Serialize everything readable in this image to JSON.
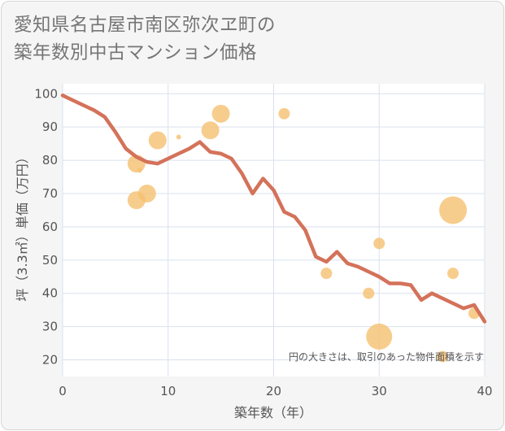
{
  "title_line1": "愛知県名古屋市南区弥次ヱ町の",
  "title_line2": "築年数別中古マンション価格",
  "colors": {
    "line": "#d4725a",
    "bubble": "#f5c070",
    "plot_bg": "#ffffff",
    "grid": "#d9e2ee"
  },
  "chart_data": {
    "type": "scatter",
    "xlabel": "築年数（年）",
    "ylabel": "坪（3.3㎡）単価（万円）",
    "xlim": [
      0,
      40
    ],
    "ylim": [
      15,
      103
    ],
    "xticks": [
      0,
      10,
      20,
      30,
      40
    ],
    "yticks": [
      20,
      30,
      40,
      50,
      60,
      70,
      80,
      90,
      100
    ],
    "grid": true,
    "note": "円の大きさは、取引のあった物件面積を示す",
    "line": {
      "x": [
        0,
        1,
        2,
        3,
        4,
        5,
        6,
        7,
        8,
        9,
        10,
        11,
        12,
        13,
        14,
        15,
        16,
        17,
        18,
        19,
        20,
        21,
        22,
        23,
        24,
        25,
        26,
        27,
        28,
        29,
        30,
        31,
        32,
        33,
        34,
        35,
        36,
        37,
        38,
        39,
        40
      ],
      "y": [
        99.5,
        98,
        96.5,
        95,
        93,
        88.5,
        83.5,
        81,
        79.5,
        79,
        80.5,
        82,
        83.5,
        85.5,
        82.5,
        82,
        80.5,
        76,
        70,
        74.5,
        71,
        64.5,
        63,
        59,
        51,
        49.5,
        52.5,
        49,
        48,
        46.5,
        45,
        43,
        43,
        42.5,
        38,
        40,
        38.5,
        37,
        35.5,
        36.5,
        31.5
      ]
    },
    "bubbles": [
      {
        "x": 7,
        "y": 79,
        "r": 11
      },
      {
        "x": 7,
        "y": 68,
        "r": 11
      },
      {
        "x": 7.3,
        "y": 77,
        "r": 3
      },
      {
        "x": 8,
        "y": 70,
        "r": 11
      },
      {
        "x": 9,
        "y": 86,
        "r": 11
      },
      {
        "x": 11,
        "y": 87,
        "r": 3
      },
      {
        "x": 14,
        "y": 89,
        "r": 11
      },
      {
        "x": 15,
        "y": 94,
        "r": 11
      },
      {
        "x": 21,
        "y": 94,
        "r": 7
      },
      {
        "x": 25,
        "y": 46,
        "r": 7
      },
      {
        "x": 29,
        "y": 40,
        "r": 7
      },
      {
        "x": 30,
        "y": 55,
        "r": 7
      },
      {
        "x": 30,
        "y": 27,
        "r": 16
      },
      {
        "x": 36,
        "y": 21,
        "r": 7
      },
      {
        "x": 37,
        "y": 65,
        "r": 17
      },
      {
        "x": 37,
        "y": 46,
        "r": 7
      },
      {
        "x": 39,
        "y": 34,
        "r": 7
      }
    ]
  }
}
